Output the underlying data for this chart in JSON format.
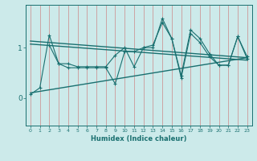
{
  "xlabel": "Humidex (Indice chaleur)",
  "bg_color": "#cceaea",
  "line_color": "#1a7070",
  "grid_color": "#cc8888",
  "xlim": [
    -0.5,
    23.5
  ],
  "ylim": [
    -0.55,
    1.85
  ],
  "yticks": [
    0,
    1
  ],
  "xticks": [
    0,
    1,
    2,
    3,
    4,
    5,
    6,
    7,
    8,
    9,
    10,
    11,
    12,
    13,
    14,
    15,
    16,
    17,
    18,
    19,
    20,
    21,
    22,
    23
  ],
  "series1_x": [
    0,
    1,
    2,
    3,
    4,
    5,
    6,
    7,
    8,
    9,
    10,
    11,
    12,
    13,
    14,
    15,
    16,
    17,
    18,
    19,
    20,
    21,
    22,
    23
  ],
  "series1_y": [
    0.07,
    0.2,
    1.25,
    0.68,
    0.68,
    0.62,
    0.62,
    0.62,
    0.62,
    0.85,
    1.0,
    0.62,
    1.0,
    1.05,
    1.5,
    1.18,
    0.45,
    1.35,
    1.18,
    0.88,
    0.65,
    0.65,
    1.22,
    0.82
  ],
  "series2_x": [
    2,
    3,
    4,
    5,
    6,
    7,
    8,
    9,
    10,
    11,
    12,
    13,
    14,
    15,
    16,
    17,
    18,
    19,
    20,
    21,
    22,
    23
  ],
  "series2_y": [
    1.05,
    0.68,
    0.6,
    0.6,
    0.6,
    0.6,
    0.6,
    0.28,
    0.92,
    0.92,
    1.0,
    1.0,
    1.58,
    1.18,
    0.4,
    1.28,
    1.1,
    0.82,
    0.65,
    0.65,
    1.22,
    0.78
  ],
  "trend1_x": [
    0,
    23
  ],
  "trend1_y": [
    1.13,
    0.8
  ],
  "trend2_x": [
    0,
    23
  ],
  "trend2_y": [
    1.07,
    0.75
  ],
  "trend3_x": [
    0,
    23
  ],
  "trend3_y": [
    0.1,
    0.8
  ]
}
